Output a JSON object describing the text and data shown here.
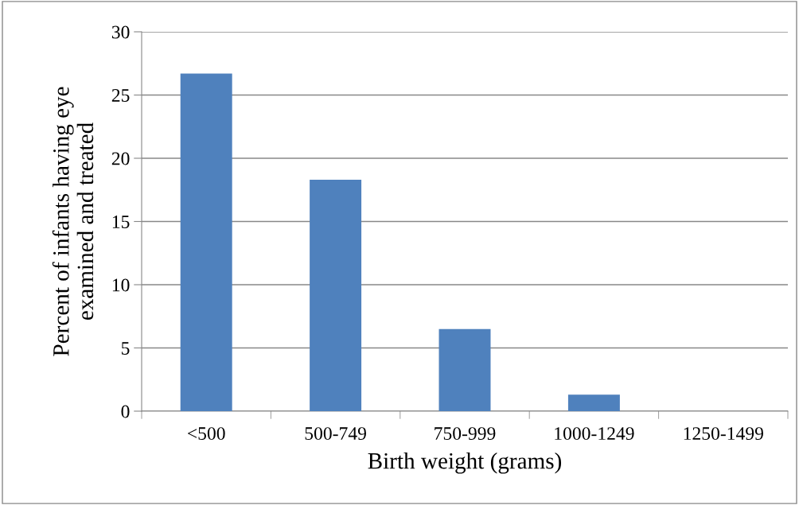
{
  "chart_data": {
    "type": "bar",
    "xlabel": "Birth weight (grams)",
    "ylabel": "Percent of infants having eye\nexamined and treated",
    "categories": [
      "<500",
      "500-749",
      "750-999",
      "1000-1249",
      "1250-1499"
    ],
    "values": [
      26.7,
      18.3,
      6.5,
      1.3,
      0
    ],
    "color": "#4f81bd",
    "ylim": [
      0,
      30
    ],
    "yticks": [
      0,
      5,
      10,
      15,
      20,
      25,
      30
    ],
    "grid": "y",
    "legend": false
  }
}
